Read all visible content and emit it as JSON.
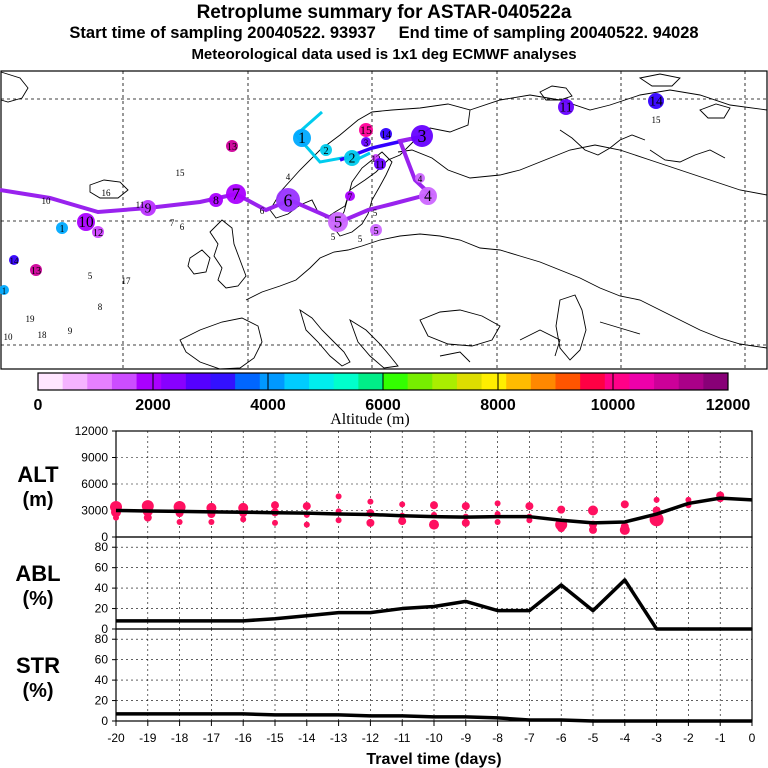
{
  "header": {
    "title": "Retroplume summary for ASTAR-040522a",
    "line2": "Start time of sampling 20040522. 93937     End time of sampling 20040522. 94028",
    "line3": "Meteorological data used is 1x1 deg ECMWF analyses"
  },
  "colors": {
    "trajectory_light": "#00ccee",
    "trajectory_blue": "#3300ff",
    "trajectory_main": "#9922ee",
    "alt_dot": "#ff1060",
    "curve": "#000000"
  },
  "colorbar": {
    "label": "Altitude (m)",
    "ticks": [
      "0",
      "2000",
      "4000",
      "6000",
      "8000",
      "10000",
      "12000"
    ],
    "colors": [
      "#ffe6ff",
      "#f5b3ff",
      "#e680ff",
      "#cc4dff",
      "#aa00ff",
      "#8800ff",
      "#5500ff",
      "#3311ff",
      "#0066ff",
      "#0099ff",
      "#00ccff",
      "#00eeee",
      "#00ffcc",
      "#00ee88",
      "#33ff00",
      "#77ee00",
      "#aaee00",
      "#dddd00",
      "#ffee00",
      "#ffbb00",
      "#ff8800",
      "#ff5500",
      "#ff0044",
      "#ff0088",
      "#ee00aa",
      "#cc0099",
      "#aa0088",
      "#880077"
    ]
  },
  "map_labels": [
    {
      "text": "1",
      "color": "#00aaff"
    },
    {
      "text": "2",
      "color": "#00ccee"
    },
    {
      "text": "3",
      "color": "#6600ff"
    },
    {
      "text": "4",
      "color": "#cc66ff"
    },
    {
      "text": "5",
      "color": "#cc66ff"
    },
    {
      "text": "6",
      "color": "#9933ff"
    },
    {
      "text": "7",
      "color": "#aa00ff"
    },
    {
      "text": "8",
      "color": "#aa00ff"
    },
    {
      "text": "9",
      "color": "#bb33ff"
    },
    {
      "text": "10",
      "color": "#aa00ff"
    },
    {
      "text": "11",
      "color": "#6600ff"
    },
    {
      "text": "12",
      "color": "#cc44ff"
    },
    {
      "text": "13",
      "color": "#cc0099"
    },
    {
      "text": "14",
      "color": "#3300ff"
    },
    {
      "text": "15",
      "color": "#ff0099"
    },
    {
      "text": "16",
      "color": "#cc0099"
    },
    {
      "text": "17",
      "color": "#ee00aa"
    },
    {
      "text": "18",
      "color": "#cc44ff"
    },
    {
      "text": "19",
      "color": "#880077"
    }
  ],
  "chart_data": [
    {
      "type": "line",
      "panel": "ALT",
      "ylabel": "ALT",
      "yunit": "(m)",
      "ylim": [
        0,
        12000
      ],
      "yticks": [
        0,
        3000,
        6000,
        9000,
        12000
      ],
      "x": [
        -20,
        -19,
        -18,
        -17,
        -16,
        -15,
        -14,
        -13,
        -12,
        -11,
        -10,
        -9,
        -8,
        -7,
        -6,
        -5,
        -4,
        -3,
        -2,
        -1,
        0
      ],
      "values": [
        3000,
        2950,
        2900,
        2850,
        2800,
        2750,
        2700,
        2600,
        2550,
        2400,
        2300,
        2250,
        2300,
        2300,
        1900,
        1600,
        1700,
        2600,
        3800,
        4400,
        4200
      ],
      "scatter": [
        {
          "x": -20,
          "y": 3400,
          "s": 6
        },
        {
          "x": -20,
          "y": 2800,
          "s": 5
        },
        {
          "x": -20,
          "y": 2200,
          "s": 3
        },
        {
          "x": -19,
          "y": 3500,
          "s": 6
        },
        {
          "x": -19,
          "y": 2900,
          "s": 5
        },
        {
          "x": -19,
          "y": 2200,
          "s": 4
        },
        {
          "x": -18,
          "y": 3400,
          "s": 6
        },
        {
          "x": -18,
          "y": 2700,
          "s": 4
        },
        {
          "x": -18,
          "y": 1700,
          "s": 3
        },
        {
          "x": -17,
          "y": 3300,
          "s": 5
        },
        {
          "x": -17,
          "y": 2600,
          "s": 4
        },
        {
          "x": -17,
          "y": 1700,
          "s": 3
        },
        {
          "x": -16,
          "y": 3300,
          "s": 5
        },
        {
          "x": -16,
          "y": 2700,
          "s": 4
        },
        {
          "x": -16,
          "y": 2000,
          "s": 3
        },
        {
          "x": -15,
          "y": 3600,
          "s": 4
        },
        {
          "x": -15,
          "y": 2800,
          "s": 4
        },
        {
          "x": -15,
          "y": 1600,
          "s": 3
        },
        {
          "x": -14,
          "y": 3500,
          "s": 4
        },
        {
          "x": -14,
          "y": 2500,
          "s": 3
        },
        {
          "x": -14,
          "y": 1400,
          "s": 3
        },
        {
          "x": -13,
          "y": 4600,
          "s": 3
        },
        {
          "x": -13,
          "y": 2900,
          "s": 3
        },
        {
          "x": -13,
          "y": 1900,
          "s": 3
        },
        {
          "x": -12,
          "y": 4000,
          "s": 3
        },
        {
          "x": -12,
          "y": 2700,
          "s": 4
        },
        {
          "x": -12,
          "y": 1600,
          "s": 4
        },
        {
          "x": -11,
          "y": 3700,
          "s": 3
        },
        {
          "x": -11,
          "y": 2400,
          "s": 3
        },
        {
          "x": -11,
          "y": 1800,
          "s": 4
        },
        {
          "x": -10,
          "y": 3600,
          "s": 4
        },
        {
          "x": -10,
          "y": 2500,
          "s": 3
        },
        {
          "x": -10,
          "y": 1400,
          "s": 5
        },
        {
          "x": -9,
          "y": 3500,
          "s": 4
        },
        {
          "x": -9,
          "y": 2300,
          "s": 3
        },
        {
          "x": -9,
          "y": 1600,
          "s": 4
        },
        {
          "x": -8,
          "y": 3800,
          "s": 3
        },
        {
          "x": -8,
          "y": 2600,
          "s": 3
        },
        {
          "x": -8,
          "y": 1700,
          "s": 3
        },
        {
          "x": -7,
          "y": 3500,
          "s": 4
        },
        {
          "x": -7,
          "y": 2300,
          "s": 3
        },
        {
          "x": -7,
          "y": 1900,
          "s": 3
        },
        {
          "x": -6,
          "y": 3100,
          "s": 4
        },
        {
          "x": -6,
          "y": 1400,
          "s": 6
        },
        {
          "x": -6,
          "y": 1000,
          "s": 4
        },
        {
          "x": -5,
          "y": 3000,
          "s": 5
        },
        {
          "x": -5,
          "y": 1400,
          "s": 4
        },
        {
          "x": -5,
          "y": 800,
          "s": 4
        },
        {
          "x": -4,
          "y": 3700,
          "s": 4
        },
        {
          "x": -4,
          "y": 1200,
          "s": 4
        },
        {
          "x": -4,
          "y": 800,
          "s": 5
        },
        {
          "x": -3,
          "y": 4200,
          "s": 3
        },
        {
          "x": -3,
          "y": 3000,
          "s": 4
        },
        {
          "x": -3,
          "y": 2000,
          "s": 7
        },
        {
          "x": -2,
          "y": 4200,
          "s": 3
        },
        {
          "x": -2,
          "y": 3600,
          "s": 3
        },
        {
          "x": -1,
          "y": 4700,
          "s": 4
        },
        {
          "x": -1,
          "y": 4400,
          "s": 4
        }
      ]
    },
    {
      "type": "line",
      "panel": "ABL",
      "ylabel": "ABL",
      "yunit": "(%)",
      "ylim": [
        0,
        90
      ],
      "yticks": [
        0,
        20,
        40,
        60,
        80
      ],
      "x": [
        -20,
        -19,
        -18,
        -17,
        -16,
        -15,
        -14,
        -13,
        -12,
        -11,
        -10,
        -9,
        -8,
        -7,
        -6,
        -5,
        -4,
        -3,
        -2,
        -1,
        0
      ],
      "values": [
        8,
        8,
        8,
        8,
        8,
        10,
        13,
        16,
        16,
        20,
        22,
        27,
        18,
        18,
        43,
        18,
        48,
        0,
        0,
        0,
        0
      ]
    },
    {
      "type": "line",
      "panel": "STR",
      "ylabel": "STR",
      "yunit": "(%)",
      "ylim": [
        0,
        90
      ],
      "yticks": [
        0,
        20,
        40,
        60,
        80
      ],
      "x": [
        -20,
        -19,
        -18,
        -17,
        -16,
        -15,
        -14,
        -13,
        -12,
        -11,
        -10,
        -9,
        -8,
        -7,
        -6,
        -5,
        -4,
        -3,
        -2,
        -1,
        0
      ],
      "values": [
        7,
        7,
        7,
        7,
        7,
        6,
        6,
        6,
        5,
        5,
        4,
        4,
        3,
        1,
        1,
        0,
        0,
        0,
        0,
        0,
        0
      ]
    }
  ],
  "xaxis": {
    "ticks": [
      "-20",
      "-19",
      "-18",
      "-17",
      "-16",
      "-15",
      "-14",
      "-13",
      "-12",
      "-11",
      "-10",
      "-9",
      "-8",
      "-7",
      "-6",
      "-5",
      "-4",
      "-3",
      "-2",
      "-1",
      "0"
    ],
    "xlabel": "Travel time (days)"
  }
}
